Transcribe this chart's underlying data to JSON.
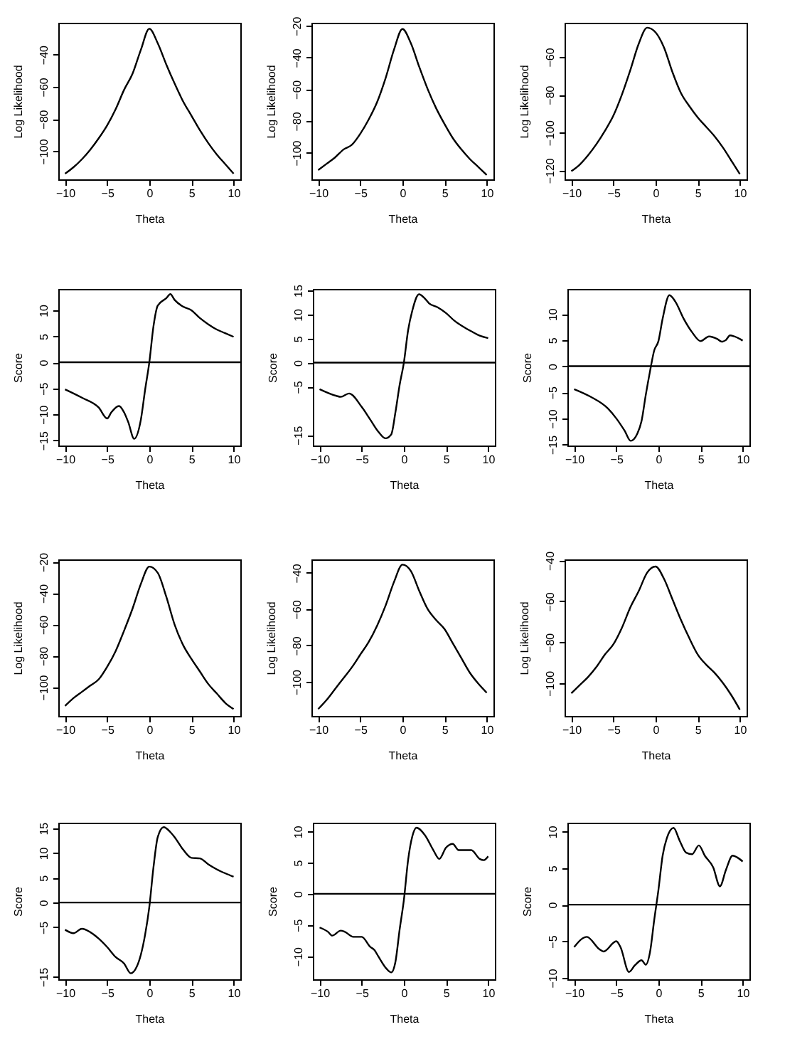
{
  "chart_data": [
    {
      "type": "line",
      "xlabel": "Theta",
      "ylabel": "Log Likelihood",
      "color": "#000000",
      "xlim": [
        -10.8,
        10.8
      ],
      "xticks": [
        -10,
        -5,
        0,
        5,
        10
      ],
      "ylim": [
        -117.5,
        -20.3
      ],
      "yticks": [
        -100,
        -80,
        -60,
        -40
      ],
      "x": [
        -10,
        -9,
        -8,
        -7,
        -6,
        -5,
        -4,
        -3,
        -2,
        -1,
        0,
        1,
        2,
        3,
        4,
        5,
        6,
        7,
        8,
        9,
        10
      ],
      "values": [
        -114,
        -110,
        -105,
        -99,
        -92,
        -84,
        -74,
        -62,
        -52,
        -37,
        -24,
        -33,
        -46,
        -58,
        -69,
        -78,
        -87,
        -95,
        -102,
        -108,
        -114
      ]
    },
    {
      "type": "line",
      "xlabel": "Theta",
      "ylabel": "Log Likelihood",
      "color": "#000000",
      "xlim": [
        -10.8,
        10.8
      ],
      "xticks": [
        -10,
        -5,
        0,
        5,
        10
      ],
      "ylim": [
        -116.8,
        -18.1
      ],
      "yticks": [
        -100,
        -80,
        -60,
        -40,
        -20
      ],
      "x": [
        -10,
        -9,
        -8,
        -7,
        -6,
        -5,
        -4,
        -3,
        -2,
        -1,
        0,
        1,
        2,
        3,
        4,
        5,
        6,
        7,
        8,
        9,
        10
      ],
      "values": [
        -111,
        -107,
        -103,
        -98,
        -95,
        -88,
        -79,
        -68,
        -53,
        -35,
        -22,
        -31,
        -46,
        -60,
        -72,
        -82,
        -91,
        -98,
        -104,
        -109,
        -114
      ]
    },
    {
      "type": "line",
      "xlabel": "Theta",
      "ylabel": "Log Likelihood",
      "color": "#000000",
      "xlim": [
        -10.8,
        10.8
      ],
      "xticks": [
        -10,
        -5,
        0,
        5,
        10
      ],
      "ylim": [
        -124.8,
        -41.9
      ],
      "yticks": [
        -120,
        -100,
        -80,
        -60
      ],
      "x": [
        -10,
        -9,
        -8,
        -7,
        -6,
        -5,
        -4,
        -3,
        -2,
        -1,
        0,
        1,
        2,
        3,
        4,
        5,
        6,
        7,
        8,
        9,
        10
      ],
      "values": [
        -120.5,
        -117,
        -112,
        -106,
        -99,
        -91,
        -80,
        -67,
        -53,
        -44.5,
        -47,
        -55,
        -68,
        -79,
        -86,
        -92,
        -97,
        -102,
        -108,
        -115,
        -122
      ]
    },
    {
      "type": "line",
      "xlabel": "Theta",
      "ylabel": "Score",
      "color": "#000000",
      "xlim": [
        -10.8,
        10.8
      ],
      "xticks": [
        -10,
        -5,
        0,
        5,
        10
      ],
      "ylim": [
        -16,
        14.1
      ],
      "yticks": [
        -15,
        -10,
        -5,
        0,
        5,
        10
      ],
      "ref_lines": [
        {
          "axis": "y",
          "value": 0
        }
      ],
      "x": [
        -10,
        -8,
        -6,
        -5,
        -4.5,
        -3.6,
        -3,
        -2.5,
        -1.8,
        -1,
        -0.5,
        0,
        0.5,
        1,
        2,
        2.5,
        3,
        4,
        5,
        6,
        7,
        8,
        9,
        10
      ],
      "values": [
        -5.2,
        -6.8,
        -8.7,
        -10.8,
        -9.6,
        -8.4,
        -9.6,
        -11.5,
        -14.7,
        -11,
        -5.3,
        0,
        7,
        10.9,
        12.3,
        13.1,
        12,
        10.7,
        10,
        8.5,
        7.3,
        6.3,
        5.6,
        4.9
      ]
    },
    {
      "type": "line",
      "xlabel": "Theta",
      "ylabel": "Score",
      "color": "#000000",
      "xlim": [
        -10.8,
        10.8
      ],
      "xticks": [
        -10,
        -5,
        0,
        5,
        10
      ],
      "ylim": [
        -17.2,
        15.3
      ],
      "yticks": [
        -15,
        -5,
        0,
        5,
        10,
        15
      ],
      "ref_lines": [
        {
          "axis": "y",
          "value": 0
        }
      ],
      "x": [
        -10,
        -8,
        -7.5,
        -6.5,
        -5,
        -4,
        -3,
        -2.2,
        -1.5,
        -1,
        -0.5,
        0,
        0.5,
        1,
        1.8,
        2.5,
        3,
        4,
        5,
        6,
        7,
        8,
        9,
        10
      ],
      "values": [
        -5.5,
        -6.9,
        -7.1,
        -6.4,
        -9.2,
        -11.8,
        -14.4,
        -15.7,
        -14.9,
        -10.3,
        -4.6,
        0,
        6.7,
        10.8,
        14.2,
        13.3,
        12.3,
        11.5,
        10.3,
        8.7,
        7.5,
        6.5,
        5.6,
        5.1
      ]
    },
    {
      "type": "line",
      "xlabel": "Theta",
      "ylabel": "Score",
      "color": "#000000",
      "xlim": [
        -10.8,
        10.8
      ],
      "xticks": [
        -10,
        -5,
        0,
        5,
        10
      ],
      "ylim": [
        -15.2,
        14.8
      ],
      "yticks": [
        -15,
        -10,
        -5,
        0,
        5,
        10
      ],
      "ref_lines": [
        {
          "axis": "y",
          "value": 0
        }
      ],
      "x": [
        -10,
        -8,
        -6,
        -5,
        -4,
        -3.3,
        -2.5,
        -2,
        -1.5,
        -1,
        -0.5,
        0,
        0.5,
        1.3,
        2,
        3,
        4,
        5,
        6,
        7,
        7.5,
        8,
        8.5,
        9,
        10
      ],
      "values": [
        -4.4,
        -5.9,
        -8.1,
        -10,
        -12.4,
        -14.3,
        -12.9,
        -10.5,
        -5.5,
        -1,
        3,
        4.8,
        9.1,
        13.6,
        12.4,
        9.1,
        6.5,
        4.8,
        5.7,
        5.2,
        4.7,
        5,
        5.9,
        5.7,
        4.9
      ]
    },
    {
      "type": "line",
      "xlabel": "Theta",
      "ylabel": "Log Likelihood",
      "color": "#000000",
      "xlim": [
        -10.8,
        10.8
      ],
      "xticks": [
        -10,
        -5,
        0,
        5,
        10
      ],
      "ylim": [
        -118.4,
        -18.4
      ],
      "yticks": [
        -100,
        -80,
        -60,
        -40,
        -20
      ],
      "x": [
        -10,
        -9,
        -8,
        -7,
        -6,
        -5,
        -4,
        -3,
        -2,
        -1,
        0,
        1,
        2,
        3,
        4,
        5,
        6,
        7,
        8,
        9,
        10
      ],
      "values": [
        -112,
        -107,
        -103,
        -99,
        -95,
        -87,
        -77,
        -64,
        -50,
        -34,
        -23,
        -27,
        -42,
        -60,
        -73,
        -82,
        -90,
        -98,
        -104,
        -110,
        -114
      ]
    },
    {
      "type": "line",
      "xlabel": "Theta",
      "ylabel": "Log Likelihood",
      "color": "#000000",
      "xlim": [
        -10.8,
        10.8
      ],
      "xticks": [
        -10,
        -5,
        0,
        5,
        10
      ],
      "ylim": [
        -118.8,
        -32.6
      ],
      "yticks": [
        -100,
        -80,
        -60,
        -40
      ],
      "x": [
        -10,
        -9,
        -8,
        -7,
        -6,
        -5,
        -4,
        -3,
        -2,
        -1,
        0,
        1,
        2,
        3,
        4,
        5,
        6,
        7,
        8,
        9,
        10
      ],
      "values": [
        -115,
        -110,
        -104,
        -98,
        -92,
        -85,
        -78,
        -69,
        -58,
        -45,
        -35.5,
        -39,
        -50,
        -60,
        -66,
        -71,
        -79,
        -87,
        -95,
        -101,
        -106
      ]
    },
    {
      "type": "line",
      "xlabel": "Theta",
      "ylabel": "Log Likelihood",
      "color": "#000000",
      "xlim": [
        -10.8,
        10.8
      ],
      "xticks": [
        -10,
        -5,
        0,
        5,
        10
      ],
      "ylim": [
        -116.1,
        -39.5
      ],
      "yticks": [
        -100,
        -80,
        -60,
        -40
      ],
      "x": [
        -10,
        -9,
        -8,
        -7,
        -6,
        -5,
        -4,
        -3,
        -2,
        -1,
        0,
        1,
        2,
        3,
        4,
        5,
        6,
        7,
        8,
        9,
        10
      ],
      "values": [
        -105,
        -101,
        -97,
        -92,
        -86,
        -81,
        -73,
        -63,
        -55,
        -46,
        -43,
        -49,
        -59,
        -69,
        -78,
        -86,
        -91,
        -95,
        -100,
        -106,
        -113
      ]
    },
    {
      "type": "line",
      "xlabel": "Theta",
      "ylabel": "Score",
      "color": "#000000",
      "xlim": [
        -10.8,
        10.8
      ],
      "xticks": [
        -10,
        -5,
        0,
        5,
        10
      ],
      "ylim": [
        -15.5,
        16.1
      ],
      "yticks": [
        -15,
        -5,
        0,
        5,
        10,
        15
      ],
      "ref_lines": [
        {
          "axis": "y",
          "value": 0
        }
      ],
      "x": [
        -10,
        -9,
        -8,
        -7,
        -6,
        -5,
        -4,
        -3,
        -2.2,
        -1.5,
        -1,
        -0.5,
        0,
        0.5,
        1,
        1.7,
        2.5,
        3,
        4,
        5,
        6,
        7,
        8,
        9,
        10
      ],
      "values": [
        -5.5,
        -6.2,
        -5.3,
        -6,
        -7.3,
        -9,
        -11,
        -12.3,
        -14.3,
        -13,
        -10.5,
        -6.5,
        -0.9,
        7.2,
        13.2,
        15.2,
        14.2,
        13.2,
        10.7,
        9,
        8.9,
        7.7,
        6.7,
        5.9,
        5.2
      ]
    },
    {
      "type": "line",
      "xlabel": "Theta",
      "ylabel": "Score",
      "color": "#000000",
      "xlim": [
        -10.8,
        10.8
      ],
      "xticks": [
        -10,
        -5,
        0,
        5,
        10
      ],
      "ylim": [
        -13.7,
        11.4
      ],
      "yticks": [
        -10,
        -5,
        0,
        5,
        10
      ],
      "ref_lines": [
        {
          "axis": "y",
          "value": 0
        }
      ],
      "x": [
        -10,
        -9,
        -8.5,
        -7.5,
        -7,
        -6,
        -5,
        -4,
        -3.5,
        -3,
        -2,
        -1.5,
        -1,
        -0.5,
        0,
        0.5,
        1,
        1.5,
        2.5,
        3.5,
        4.2,
        5,
        5.8,
        6.5,
        8,
        9,
        9.5,
        10
      ],
      "values": [
        -5.4,
        -6.1,
        -6.7,
        -5.9,
        -6.1,
        -6.9,
        -6.9,
        -8.5,
        -9,
        -10.1,
        -12.1,
        -12.6,
        -10.9,
        -5.7,
        -1,
        5.4,
        9.2,
        10.6,
        9.4,
        7,
        5.6,
        7.4,
        8,
        7,
        7,
        5.6,
        5.4,
        6
      ]
    },
    {
      "type": "line",
      "xlabel": "Theta",
      "ylabel": "Score",
      "color": "#000000",
      "xlim": [
        -10.8,
        10.8
      ],
      "xticks": [
        -10,
        -5,
        0,
        5,
        10
      ],
      "ylim": [
        -10.2,
        11.2
      ],
      "yticks": [
        -10,
        -5,
        0,
        5,
        10
      ],
      "ref_lines": [
        {
          "axis": "y",
          "value": 0
        }
      ],
      "x": [
        -10,
        -9,
        -8.5,
        -7,
        -6.5,
        -5,
        -4.5,
        -3.5,
        -2.8,
        -2,
        -1.5,
        -1,
        -0.5,
        0,
        0.5,
        1,
        1.8,
        2.5,
        3.3,
        4,
        4.8,
        5.5,
        6.5,
        7.3,
        8,
        8.8,
        9.3,
        10
      ],
      "values": [
        -5.8,
        -4.6,
        -4.4,
        -6.1,
        -6.4,
        -5,
        -5.8,
        -9.2,
        -8.3,
        -7.6,
        -8.2,
        -6.5,
        -2.1,
        2,
        6.7,
        9.1,
        10.5,
        8.8,
        7.1,
        6.9,
        8.1,
        6.7,
        5.1,
        2.5,
        4.7,
        6.7,
        6.5,
        5.9
      ]
    }
  ]
}
